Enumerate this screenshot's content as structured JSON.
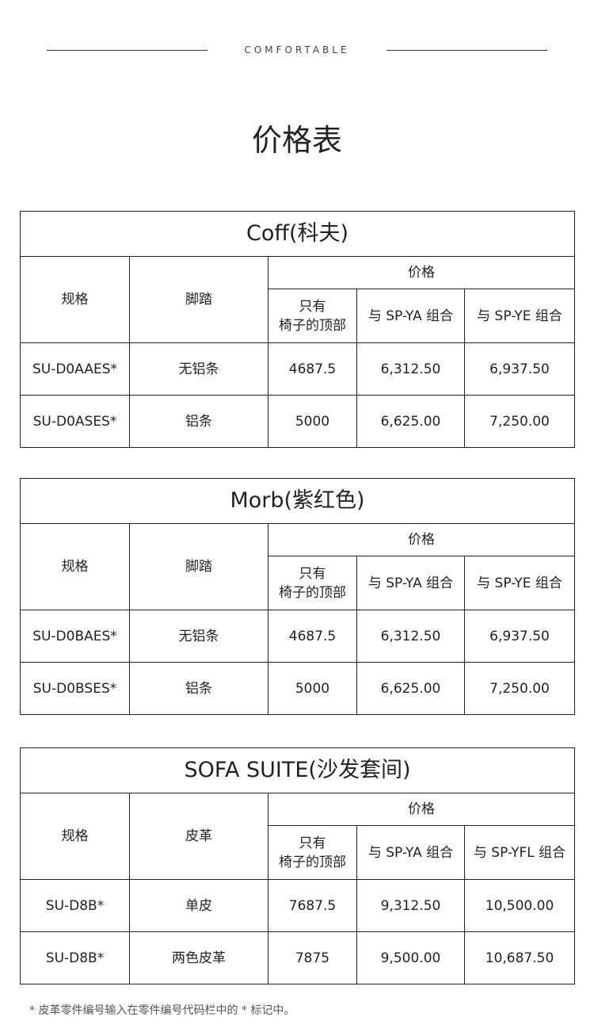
{
  "header": {
    "brand": "COMFORTABLE",
    "title": "价格表"
  },
  "tables": [
    {
      "title": "Coff(科夫)",
      "col_spec": "规格",
      "col_option": "脚踏",
      "col_price": "价格",
      "sub": [
        "只有\n椅子的顶部",
        "与 SP-YA 组合",
        "与 SP-YE 组合"
      ],
      "rows": [
        [
          "SU-D0AAES*",
          "无铝条",
          "4687.5",
          "6,312.50",
          "6,937.50"
        ],
        [
          "SU-D0ASES*",
          "铝条",
          "5000",
          "6,625.00",
          "7,250.00"
        ]
      ]
    },
    {
      "title": "Morb(紫红色)",
      "col_spec": "规格",
      "col_option": "脚踏",
      "col_price": "价格",
      "sub": [
        "只有\n椅子的顶部",
        "与 SP-YA 组合",
        "与 SP-YE 组合"
      ],
      "rows": [
        [
          "SU-D0BAES*",
          "无铝条",
          "4687.5",
          "6,312.50",
          "6,937.50"
        ],
        [
          "SU-D0BSES*",
          "铝条",
          "5000",
          "6,625.00",
          "7,250.00"
        ]
      ]
    },
    {
      "title": "SOFA SUITE(沙发套间)",
      "col_spec": "规格",
      "col_option": "皮革",
      "col_price": "价格",
      "sub": [
        "只有\n椅子的顶部",
        "与 SP-YA 组合",
        "与 SP-YFL 组合"
      ],
      "rows": [
        [
          "SU-D8B*",
          "单皮",
          "7687.5",
          "9,312.50",
          "10,500.00"
        ],
        [
          "SU-D8B*",
          "两色皮革",
          "7875",
          "9,500.00",
          "10,687.50"
        ]
      ]
    }
  ],
  "footnote": "* 皮革零件编号输入在零件编号代码栏中的 * 标记中。"
}
